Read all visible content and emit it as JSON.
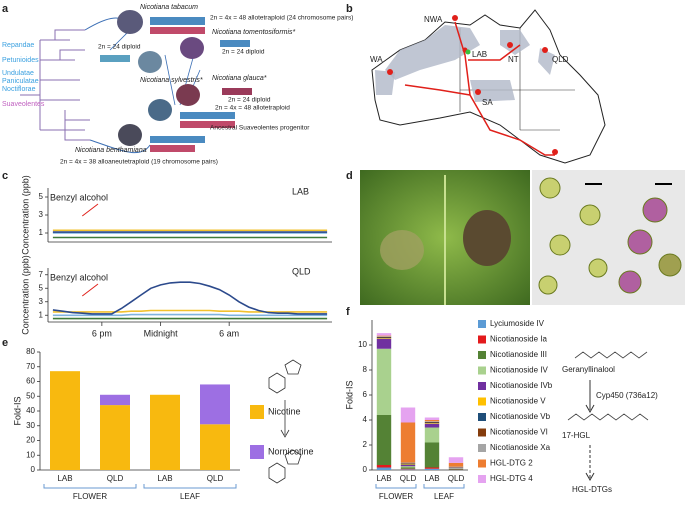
{
  "panel_labels": [
    "a",
    "b",
    "c",
    "d",
    "e",
    "f"
  ],
  "phylogeny": {
    "clades": [
      "Repandae",
      "Petunioides",
      "Undulatae",
      "Paniculatae",
      "Noctiflorae",
      "Suaveolentes"
    ],
    "species": [
      "Nicotiana tabacum",
      "Nicotiana tomentosiformis*",
      "Nicotiana sylvestris*",
      "Nicotiana glauca*",
      "Nicotiana benthamiana"
    ],
    "notes": [
      "2n = 4x = 48 allotetraploid (24 chromosome pairs)",
      "2n = 24 diploid",
      "2n = 24 diploid",
      "2n = 24 diploid",
      "2n = 4x = 48 allotetraploid",
      "Ancestral Suaveolentes progenitor",
      "2n = 4x = 38 alloaneutetraploid (19 chromosome pairs)"
    ]
  },
  "map": {
    "sites": [
      "NWA",
      "WA",
      "LAB",
      "NT",
      "QLD",
      "SA"
    ]
  },
  "pathway": {
    "steps": [
      "Geranyllinalool",
      "Cyp450 (736a12)",
      "17-HGL",
      "HGL-DTGs"
    ]
  },
  "chart_data": [
    {
      "type": "line",
      "title": "LAB",
      "ylabel": "Concentration (ppb)",
      "annotation": "Benzyl alcohol",
      "x": [
        0,
        1,
        2,
        3,
        4,
        5,
        6,
        7,
        8,
        9,
        10,
        11,
        12,
        13,
        14,
        15,
        16,
        17,
        18,
        19,
        20,
        21,
        22,
        23,
        24,
        25,
        26,
        27,
        28
      ],
      "xlim": [
        -0.5,
        28.5
      ],
      "ylim": [
        0,
        6
      ],
      "yticks": [
        1,
        3,
        5
      ],
      "series": [
        {
          "color": "#f2c12e",
          "values": [
            1.3,
            1.3,
            1.3,
            1.3,
            1.3,
            1.3,
            1.3,
            1.3,
            1.3,
            1.3,
            1.3,
            1.3,
            1.3,
            1.3,
            1.3,
            1.3,
            1.3,
            1.3,
            1.3,
            1.3,
            1.3,
            1.3,
            1.3,
            1.3,
            1.3,
            1.3,
            1.3,
            1.3,
            1.3
          ]
        },
        {
          "color": "#7fb3e0",
          "values": [
            1,
            1,
            1,
            1,
            1,
            1,
            1,
            1,
            1,
            1,
            1,
            1,
            1,
            1,
            1,
            1,
            1,
            1,
            1,
            1,
            1,
            1,
            1,
            1,
            1,
            1,
            1,
            1,
            1
          ]
        },
        {
          "color": "#2c4a8c",
          "values": [
            1.1,
            1.1,
            1.1,
            1.1,
            1.1,
            1.1,
            1.1,
            1.1,
            1.1,
            1.1,
            1.1,
            1.1,
            1.1,
            1.1,
            1.1,
            1.1,
            1.1,
            1.1,
            1.1,
            1.1,
            1.1,
            1.1,
            1.1,
            1.1,
            1.1,
            1.1,
            1.1,
            1.1,
            1.1
          ]
        },
        {
          "color": "#3f7a3a",
          "values": [
            0.5,
            0.5,
            0.5,
            0.5,
            0.5,
            0.5,
            0.5,
            0.5,
            0.5,
            0.5,
            0.5,
            0.5,
            0.5,
            0.5,
            0.5,
            0.5,
            0.5,
            0.5,
            0.5,
            0.5,
            0.5,
            0.5,
            0.5,
            0.5,
            0.5,
            0.5,
            0.5,
            0.5,
            0.5
          ]
        }
      ]
    },
    {
      "type": "line",
      "title": "QLD",
      "ylabel": "Concentration (ppb)",
      "annotation": "Benzyl alcohol",
      "x": [
        0,
        1,
        2,
        3,
        4,
        5,
        6,
        7,
        8,
        9,
        10,
        11,
        12,
        13,
        14,
        15,
        16,
        17,
        18,
        19,
        20,
        21,
        22,
        23,
        24,
        25,
        26,
        27,
        28
      ],
      "xlim": [
        -0.5,
        28.5
      ],
      "ylim": [
        0,
        8
      ],
      "yticks": [
        1,
        3,
        5,
        7
      ],
      "xticks": [
        {
          "value": 5,
          "label": "6 pm"
        },
        {
          "value": 11,
          "label": "Midnight"
        },
        {
          "value": 18,
          "label": "6 am"
        }
      ],
      "series": [
        {
          "color": "#f2c12e",
          "values": [
            1.5,
            1.5,
            1.5,
            1.5,
            1.5,
            1.5,
            1.5,
            1.5,
            1.6,
            1.6,
            1.7,
            1.7,
            1.7,
            1.7,
            1.7,
            1.7,
            1.7,
            1.6,
            1.6,
            1.6,
            1.5,
            1.5,
            1.5,
            1.5,
            1.5,
            1.5,
            1.5,
            1.5,
            1.5
          ]
        },
        {
          "color": "#7fb3e0",
          "values": [
            1,
            1,
            1,
            1,
            1,
            1,
            1,
            1,
            1.1,
            1.1,
            1.1,
            1.1,
            1.1,
            1.1,
            1.1,
            1.1,
            1.1,
            1.1,
            1,
            1,
            1,
            1,
            1,
            1,
            1,
            1,
            1,
            1,
            1
          ]
        },
        {
          "color": "#3f7a3a",
          "values": [
            0.5,
            0.5,
            0.5,
            0.5,
            0.5,
            0.5,
            0.5,
            0.5,
            0.5,
            0.5,
            0.5,
            0.5,
            0.5,
            0.5,
            0.5,
            0.5,
            0.5,
            0.5,
            0.5,
            0.5,
            0.5,
            0.5,
            0.5,
            0.5,
            0.5,
            0.5,
            0.5,
            0.5,
            0.5
          ]
        },
        {
          "color": "#2c4a8c",
          "values": [
            1.8,
            1.6,
            1.4,
            1.3,
            1.2,
            1.2,
            1.2,
            2,
            3,
            4,
            5,
            5.5,
            5.8,
            5.9,
            5.9,
            5.7,
            5.3,
            4.8,
            4,
            3,
            2.2,
            1.7,
            1.4,
            1.3,
            1.3,
            1.2,
            1.2,
            1.2,
            1.2
          ]
        }
      ]
    },
    {
      "type": "stacked_bar",
      "ylabel": "Fold-IS",
      "categories": [
        "LAB",
        "QLD",
        "LAB",
        "QLD"
      ],
      "groups": [
        "FLOWER",
        "LEAF"
      ],
      "ylim": [
        0,
        80
      ],
      "yticks": [
        0,
        10,
        20,
        30,
        40,
        50,
        60,
        70,
        80
      ],
      "series": [
        {
          "name": "Nicotine",
          "color": "#f8b90f",
          "values": [
            67,
            44,
            51,
            31
          ]
        },
        {
          "name": "Nornicotine",
          "color": "#9d6fe3",
          "values": [
            0,
            7,
            0,
            27
          ]
        }
      ]
    },
    {
      "type": "stacked_bar",
      "ylabel": "Fold-IS",
      "categories": [
        "LAB",
        "QLD",
        "LAB",
        "QLD"
      ],
      "groups": [
        "FLOWER",
        "LEAF"
      ],
      "ylim": [
        0,
        12
      ],
      "yticks": [
        0,
        2,
        4,
        6,
        8,
        10
      ],
      "series": [
        {
          "name": "Lyciumoside IV",
          "color": "#5b9bd5",
          "values": [
            0.2,
            0.05,
            0.1,
            0.02
          ]
        },
        {
          "name": "Nicotianoside Ia",
          "color": "#e31a1c",
          "values": [
            0.2,
            0.05,
            0.1,
            0.02
          ]
        },
        {
          "name": "Nicotianoside III",
          "color": "#548235",
          "values": [
            4.0,
            0.1,
            2.0,
            0.05
          ]
        },
        {
          "name": "Nicotianoside IV",
          "color": "#a9d18e",
          "values": [
            5.3,
            0.1,
            1.2,
            0.05
          ]
        },
        {
          "name": "Nicotianoside IVb",
          "color": "#7030a0",
          "values": [
            0.8,
            0.1,
            0.3,
            0.05
          ]
        },
        {
          "name": "Nicotianoside V",
          "color": "#ffc000",
          "values": [
            0.05,
            0.05,
            0.05,
            0.02
          ]
        },
        {
          "name": "Nicotianoside Vb",
          "color": "#1f4e79",
          "values": [
            0.05,
            0.05,
            0.05,
            0.02
          ]
        },
        {
          "name": "Nicotianoside VI",
          "color": "#843c0c",
          "values": [
            0.05,
            0.05,
            0.05,
            0.02
          ]
        },
        {
          "name": "Nicotianoside Xa",
          "color": "#a5a5a5",
          "values": [
            0.05,
            0.05,
            0.05,
            0.02
          ]
        },
        {
          "name": "HGL-DTG 2",
          "color": "#ed7d31",
          "values": [
            0.05,
            3.2,
            0.1,
            0.3
          ]
        },
        {
          "name": "HGL-DTG 4",
          "color": "#e5a3f0",
          "values": [
            0.2,
            1.2,
            0.2,
            0.45
          ]
        }
      ]
    }
  ]
}
